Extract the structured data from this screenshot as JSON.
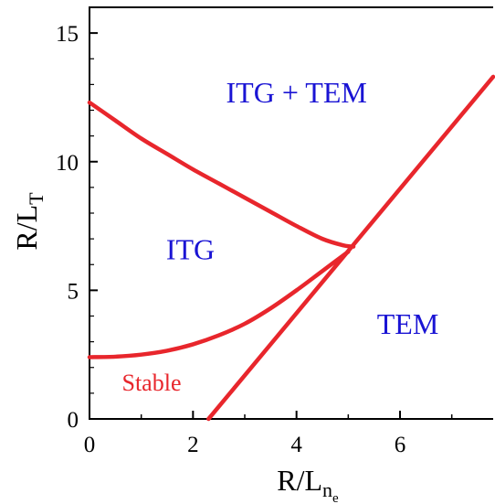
{
  "chart_data": {
    "type": "line",
    "title": "",
    "xlabel": {
      "main": "R/L",
      "sub": "n",
      "subsub": "e"
    },
    "ylabel": {
      "main": "R/L",
      "sub": "T"
    },
    "xlim": [
      0,
      7.8
    ],
    "ylim": [
      0,
      16
    ],
    "x_ticks": [
      "0",
      "2",
      "4",
      "6"
    ],
    "y_ticks": [
      "0",
      "5",
      "10",
      "15"
    ],
    "grid": false,
    "legend": "none",
    "line_color": "#e8262c",
    "label_color": "#1a14d4",
    "series": [
      {
        "x": [
          0,
          0.5,
          1,
          1.5,
          2,
          2.5,
          3,
          3.5,
          4,
          4.5,
          4.9,
          5.1
        ],
        "y": [
          12.3,
          11.6,
          10.9,
          10.3,
          9.7,
          9.15,
          8.6,
          8.05,
          7.5,
          7.0,
          6.75,
          6.7
        ]
      },
      {
        "x": [
          0,
          0.5,
          1,
          1.5,
          2,
          2.5,
          3,
          3.5,
          4,
          4.5,
          5.0
        ],
        "y": [
          2.4,
          2.42,
          2.5,
          2.65,
          2.9,
          3.25,
          3.7,
          4.3,
          5.0,
          5.75,
          6.5
        ]
      },
      {
        "x": [
          2.3,
          7.8
        ],
        "y": [
          0,
          13.3
        ]
      }
    ],
    "annotations": [
      {
        "text": "ITG + TEM",
        "x": 4.0,
        "y": 12.3,
        "color": "#1a14d4"
      },
      {
        "text": "ITG",
        "x": 1.95,
        "y": 6.2,
        "color": "#1a14d4"
      },
      {
        "text": "TEM",
        "x": 6.15,
        "y": 3.3,
        "color": "#1a14d4"
      },
      {
        "text": "Stable",
        "x": 1.2,
        "y": 1.1,
        "color": "#e8262c"
      }
    ]
  }
}
